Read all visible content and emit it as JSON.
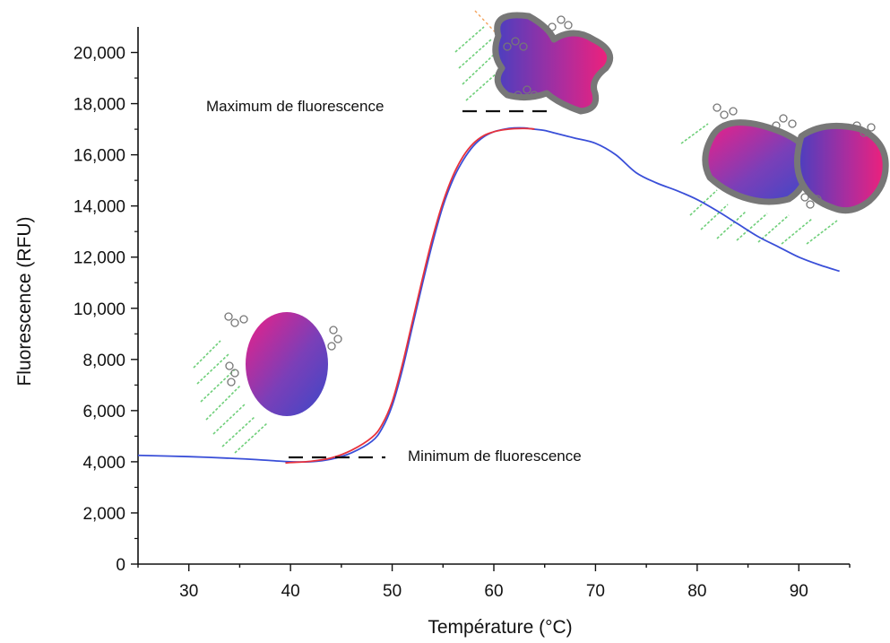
{
  "chart_data": {
    "type": "line",
    "xlabel": "Température (°C)",
    "ylabel": "Fluorescence (RFU)",
    "xlim": [
      25,
      95
    ],
    "ylim": [
      0,
      21000
    ],
    "x_ticks": [
      30,
      40,
      50,
      60,
      70,
      80,
      90
    ],
    "x_tick_labels": [
      "30",
      "40",
      "50",
      "60",
      "70",
      "80",
      "90"
    ],
    "y_ticks": [
      0,
      2000,
      4000,
      6000,
      8000,
      10000,
      12000,
      14000,
      16000,
      18000,
      20000
    ],
    "y_tick_labels": [
      "0",
      "2,000",
      "4,000",
      "6,000",
      "8,000",
      "10,000",
      "12,000",
      "14,000",
      "16,000",
      "18,000",
      "20,000"
    ],
    "grid": false,
    "series": [
      {
        "color": "#3a4fd8",
        "x": [
          25,
          30,
          35,
          38,
          40,
          42,
          44,
          46,
          48,
          49,
          50,
          51,
          52,
          53,
          54,
          55,
          56,
          57,
          58,
          59,
          60,
          61,
          62,
          63,
          64,
          65,
          66,
          67,
          68,
          70,
          72,
          74,
          76,
          78,
          80,
          82,
          84,
          86,
          88,
          90,
          92,
          94
        ],
        "y": [
          4250,
          4200,
          4120,
          4050,
          4000,
          4000,
          4100,
          4350,
          4800,
          5300,
          6200,
          7600,
          9300,
          11000,
          12600,
          14000,
          15050,
          15800,
          16350,
          16700,
          16900,
          17000,
          17050,
          17050,
          17000,
          16950,
          16850,
          16750,
          16650,
          16450,
          16000,
          15300,
          14900,
          14600,
          14250,
          13800,
          13300,
          12800,
          12400,
          12000,
          11700,
          11450
        ]
      },
      {
        "color": "#e8323c",
        "x": [
          39.5,
          40,
          42,
          44,
          46,
          48,
          49,
          50,
          51,
          52,
          53,
          54,
          55,
          56,
          57,
          58,
          59,
          60,
          61,
          62,
          63,
          64
        ],
        "y": [
          3950,
          3970,
          4020,
          4150,
          4450,
          4950,
          5450,
          6350,
          7800,
          9500,
          11200,
          12800,
          14150,
          15200,
          15950,
          16450,
          16750,
          16900,
          16980,
          17020,
          17030,
          17010
        ]
      }
    ],
    "annotations": [
      {
        "text": "Maximum de fluorescence",
        "x": 61,
        "y": 17100
      },
      {
        "text": "Minimum de fluorescence",
        "x": 43,
        "y": 3950
      }
    ]
  }
}
